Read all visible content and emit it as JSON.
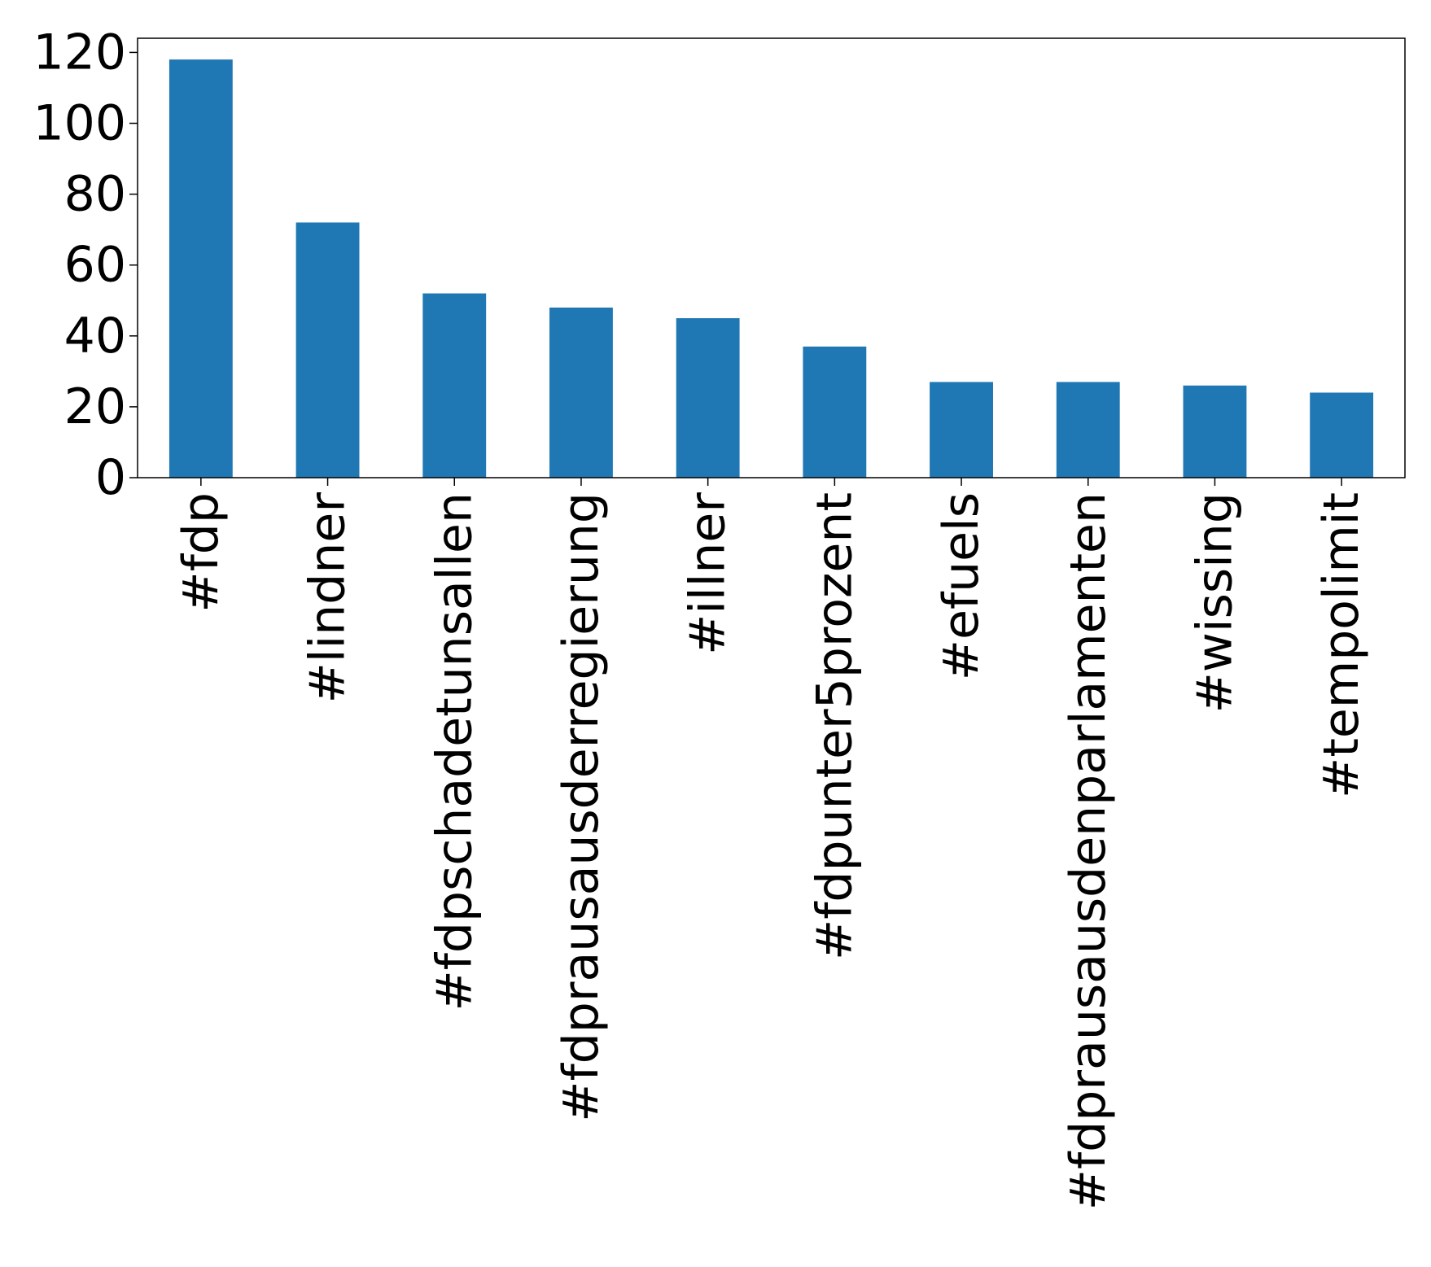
{
  "chart_data": {
    "type": "bar",
    "title": "",
    "xlabel": "",
    "ylabel": "",
    "categories": [
      "#fdp",
      "#lindner",
      "#fdpschadetunsallen",
      "#fdprausausderregierung",
      "#illner",
      "#fdpunter5prozent",
      "#efuels",
      "#fdprausausdenparlamenten",
      "#wissing",
      "#tempolimit"
    ],
    "values": [
      118,
      72,
      52,
      48,
      45,
      37,
      27,
      27,
      26,
      24
    ],
    "ylim": [
      0,
      124
    ],
    "yticks": [
      0,
      20,
      40,
      60,
      80,
      100,
      120
    ],
    "bar_color": "#1f77b4",
    "grid": false,
    "legend": "none"
  }
}
